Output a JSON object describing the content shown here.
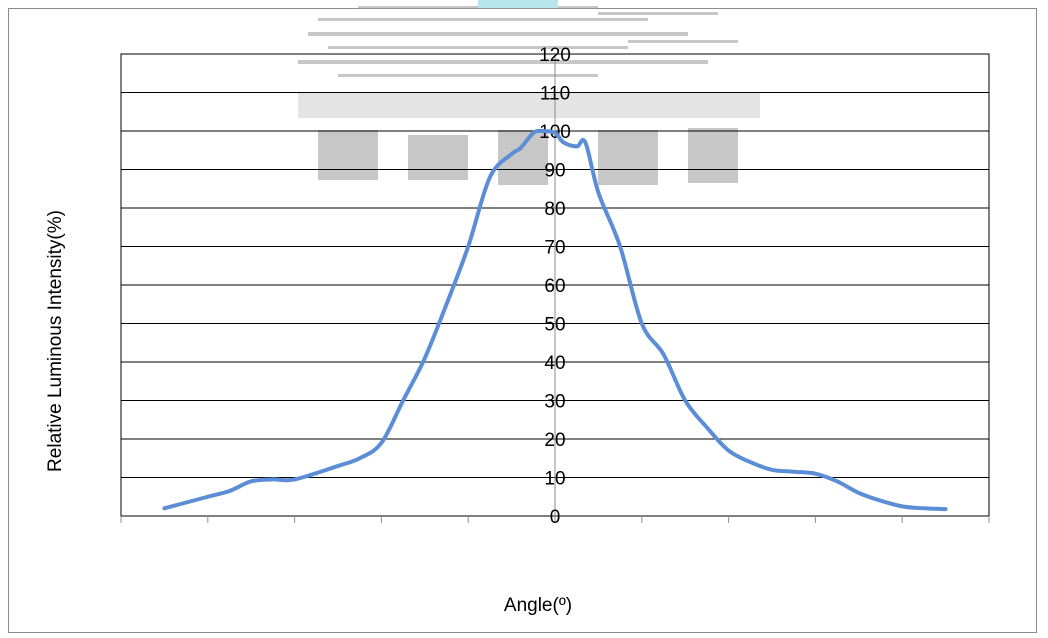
{
  "chart_data": {
    "type": "line",
    "title": "",
    "xlabel": "Angle(º)",
    "ylabel": "Relative Luminous Intensity(%)",
    "ylim": [
      0,
      120
    ],
    "xlim": [
      -100,
      100
    ],
    "yticks": [
      "0",
      "10",
      "20",
      "30",
      "40",
      "50",
      "60",
      "70",
      "80",
      "90",
      "100",
      "110",
      "120"
    ],
    "grid": true,
    "legend": "none",
    "series": [
      {
        "color": "#5b8ed6",
        "x": [
          -90,
          -80,
          -75,
          -70,
          -65,
          -60,
          -50,
          -45,
          -40,
          -35,
          -30,
          -25,
          -20,
          -15,
          -10,
          -8,
          -5,
          -3,
          0,
          2,
          5,
          7,
          10,
          15,
          20,
          25,
          30,
          35,
          40,
          45,
          50,
          55,
          60,
          65,
          70,
          75,
          80,
          85,
          90
        ],
        "y": [
          2,
          5,
          6.5,
          9,
          9.5,
          9.5,
          13,
          15,
          19,
          30,
          41,
          55,
          70,
          88,
          94,
          95.5,
          99.5,
          100,
          99.5,
          97,
          96,
          97,
          84,
          70,
          50,
          42,
          30,
          23,
          17,
          14,
          12,
          11.5,
          11,
          9,
          6,
          4,
          2.5,
          2,
          1.8
        ]
      }
    ]
  }
}
